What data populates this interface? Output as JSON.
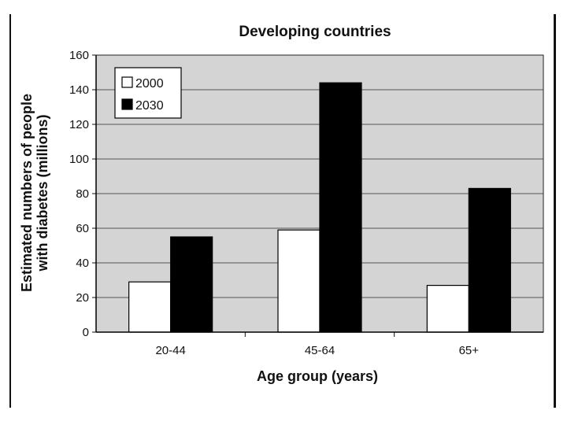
{
  "chart_data": {
    "type": "bar",
    "title": "Developing countries",
    "xlabel": "Age group (years)",
    "ylabel": "Estimated numbers of people with diabetes (millions)",
    "ylabel_lines": [
      "Estimated numbers of people",
      "with diabetes (millions)"
    ],
    "categories": [
      "20-44",
      "45-64",
      "65+"
    ],
    "series": [
      {
        "name": "2000",
        "values": [
          29,
          59,
          27
        ],
        "color": "#ffffff"
      },
      {
        "name": "2030",
        "values": [
          55,
          144,
          83
        ],
        "color": "#000000"
      }
    ],
    "ylim": [
      0,
      160
    ],
    "yticks": [
      0,
      20,
      40,
      60,
      80,
      100,
      120,
      140,
      160
    ],
    "grid": true,
    "legend_position": "top-left",
    "plot_background": "#d4d4d4"
  }
}
